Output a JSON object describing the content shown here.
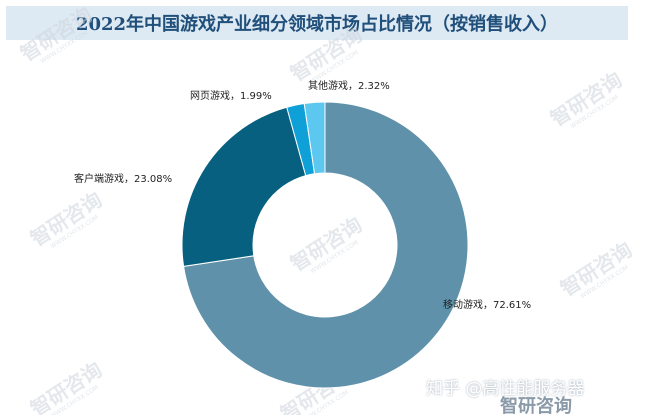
{
  "title": "2022年中国游戏产业细分领域市场占比情况（按销售收入）",
  "chart_data": {
    "type": "pie",
    "variant": "donut",
    "categories": [
      "移动游戏",
      "客户端游戏",
      "网页游戏",
      "其他游戏"
    ],
    "values": [
      72.61,
      23.08,
      1.99,
      2.32
    ],
    "labels": [
      "移动游戏，72.61%",
      "客户端游戏，23.08%",
      "网页游戏，1.99%",
      "其他游戏，2.32%"
    ],
    "colors": [
      "#5f92aa",
      "#07607f",
      "#10a0d8",
      "#5cc8f0"
    ],
    "legend": "none"
  },
  "watermark": {
    "brand": "智研咨询",
    "sub": "WWW.CHYXX.COM",
    "footer_text": "知乎 @高性能服务器",
    "footer_logo": "智研咨询"
  }
}
